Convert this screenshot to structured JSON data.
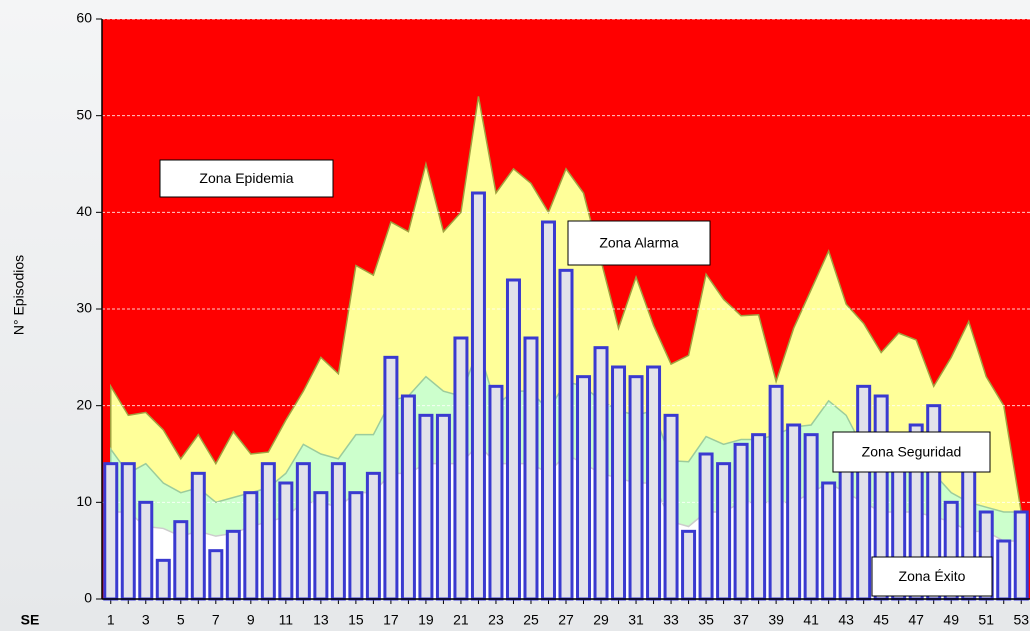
{
  "chart_data": {
    "type": "bar",
    "y_label": "N° Episodios",
    "x_label": "SE",
    "categories": [
      1,
      null,
      3,
      null,
      5,
      null,
      7,
      null,
      9,
      null,
      11,
      null,
      13,
      null,
      15,
      null,
      17,
      null,
      19,
      null,
      21,
      null,
      23,
      null,
      25,
      null,
      27,
      null,
      29,
      null,
      31,
      null,
      33,
      null,
      35,
      null,
      37,
      null,
      39,
      null,
      41,
      null,
      43,
      null,
      45,
      null,
      47,
      null,
      49,
      null,
      51,
      null,
      53
    ],
    "values": [
      14,
      14,
      10,
      4,
      8,
      13,
      5,
      7,
      11,
      14,
      12,
      14,
      11,
      14,
      11,
      13,
      25,
      21,
      19,
      19,
      27,
      42,
      22,
      33,
      27,
      39,
      34,
      23,
      26,
      24,
      23,
      24,
      19,
      7,
      15,
      14,
      16,
      17,
      22,
      18,
      17,
      12,
      15,
      22,
      21,
      16,
      18,
      20,
      10,
      15,
      9,
      6,
      9
    ],
    "color": "#e2e2ea",
    "edge_color": "#3a3ad0",
    "background_zone": {
      "name": "Zona Epidemia",
      "color": "#ff0000"
    },
    "series": [
      {
        "name": "Zona Alarma",
        "color": "#ffff99",
        "values": [
          22,
          19,
          19.3,
          17.5,
          14.5,
          17,
          14,
          17.3,
          15,
          15.2,
          18.5,
          21.5,
          25,
          23.3,
          34.5,
          33.5,
          39,
          38,
          45,
          38,
          40,
          52,
          42,
          44.5,
          43,
          40,
          44.5,
          42,
          35,
          28,
          33.3,
          28.3,
          24.3,
          25.2,
          33.6,
          31,
          29.3,
          29.4,
          22.5,
          28,
          32,
          36,
          30.5,
          28.5,
          25.5,
          27.5,
          26.8,
          22,
          25,
          28.7,
          23,
          20,
          9
        ]
      },
      {
        "name": "Zona Seguridad",
        "color": "#ccffcc",
        "values": [
          15.5,
          13,
          14,
          12,
          11,
          11.5,
          10,
          10.5,
          11,
          11.5,
          13,
          16,
          15,
          14.5,
          17,
          17,
          20.5,
          21,
          23,
          21.5,
          21,
          26,
          20,
          21.5,
          21.5,
          19.5,
          22.5,
          22,
          20.5,
          19.5,
          19,
          19.5,
          14.3,
          14.2,
          16.8,
          16,
          16.5,
          16.5,
          17,
          17.8,
          18,
          20.5,
          19,
          15.5,
          15,
          14,
          14,
          13,
          11,
          10,
          9.5,
          9,
          9
        ]
      },
      {
        "name": "Zona Éxito",
        "color": "#ffffff",
        "values": [
          9,
          9,
          7.5,
          7.3,
          6.5,
          7,
          6.5,
          6.8,
          7.5,
          8,
          8.5,
          10,
          10,
          9.5,
          11,
          11,
          13,
          13,
          14,
          14,
          14,
          16,
          14,
          14,
          14,
          13,
          15,
          14,
          13,
          12.5,
          12,
          12,
          8,
          7.5,
          9,
          9,
          10,
          10,
          10,
          10,
          11,
          12,
          11,
          10,
          9,
          9,
          9,
          8.5,
          8,
          7,
          7,
          6,
          6
        ]
      }
    ],
    "ylim": [
      0,
      60
    ],
    "yticks": [
      0,
      10,
      20,
      30,
      40,
      50,
      60
    ],
    "grid": true
  }
}
